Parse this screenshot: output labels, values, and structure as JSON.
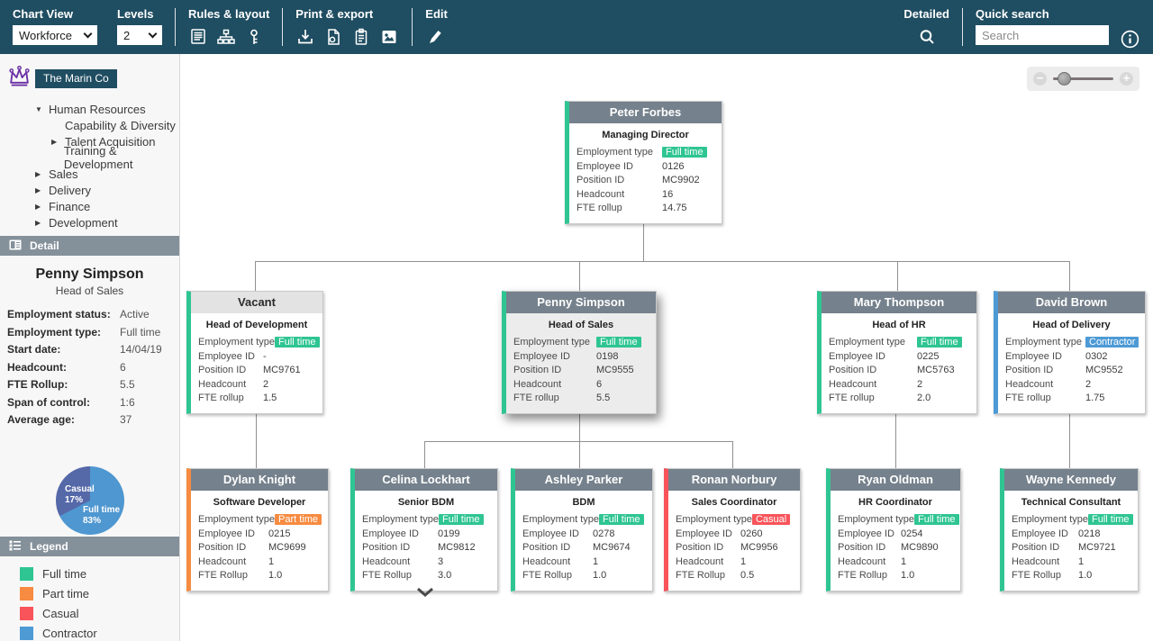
{
  "colors": {
    "toolbar_bg": "#1f4d61",
    "panel_header_bg": "#84909a",
    "company_bg": "#1f4d61",
    "header_gray": "#75818c",
    "vacant_header": "#e3e3e3",
    "fulltime": "#2fc592",
    "parttime": "#f78b41",
    "casual": "#f8545a",
    "contractor": "#4d9ad5",
    "pie_fulltime": "#4f97d0",
    "pie_casual": "#5568a8",
    "connector": "#909090",
    "crown": "#6b30a5"
  },
  "toolbar": {
    "chart_view_label": "Chart View",
    "chart_view_value": "Workforce",
    "levels_label": "Levels",
    "levels_value": "2",
    "rules_layout_label": "Rules & layout",
    "print_export_label": "Print & export",
    "edit_label": "Edit",
    "detailed_label": "Detailed",
    "quick_search_label": "Quick search",
    "search_placeholder": "Search"
  },
  "icons": {
    "toolbar": [
      "report-icon",
      "hierarchy-icon",
      "key-icon",
      "download-icon",
      "export-file-icon",
      "clipboard-icon",
      "image-icon",
      "pencil-icon",
      "magnifier-icon",
      "info-icon"
    ],
    "sidebar": [
      "crown-icon",
      "detail-panel-icon",
      "legend-icon"
    ],
    "zoom_bar": [
      "zoom-out-icon",
      "zoom-in-icon"
    ],
    "chart": [
      "expand-chevron-icon"
    ]
  },
  "sidebar": {
    "company": "The Marin Co",
    "tree": [
      {
        "label": "Human Resources",
        "arrow": "down",
        "level": 1
      },
      {
        "label": "Capability & Diversity",
        "arrow": "none",
        "level": 2
      },
      {
        "label": "Talent Acquisition",
        "arrow": "right",
        "level": 2
      },
      {
        "label": "Training & Development",
        "arrow": "none",
        "level": 2
      },
      {
        "label": "Sales",
        "arrow": "right",
        "level": 1
      },
      {
        "label": "Delivery",
        "arrow": "right",
        "level": 1
      },
      {
        "label": "Finance",
        "arrow": "right",
        "level": 1
      },
      {
        "label": "Development",
        "arrow": "right",
        "level": 1
      }
    ],
    "detail": {
      "header": "Detail",
      "name": "Penny Simpson",
      "title": "Head of Sales",
      "fields": [
        {
          "label": "Employment status:",
          "value": "Active"
        },
        {
          "label": "Employment type:",
          "value": "Full time"
        },
        {
          "label": "Start date:",
          "value": "14/04/19"
        },
        {
          "label": "Headcount:",
          "value": "6"
        },
        {
          "label": "FTE Rollup:",
          "value": "5.5"
        },
        {
          "label": "Span of control:",
          "value": "1:6"
        },
        {
          "label": "Average age:",
          "value": "37"
        }
      ]
    },
    "pie_labels": [
      {
        "name": "Casual",
        "pct": "17%"
      },
      {
        "name": "Full time",
        "pct": "83%"
      }
    ],
    "legend": {
      "header": "Legend",
      "items": [
        {
          "label": "Full time",
          "color": "#2fc592"
        },
        {
          "label": "Part time",
          "color": "#f78b41"
        },
        {
          "label": "Casual",
          "color": "#f8545a"
        },
        {
          "label": "Contractor",
          "color": "#4d9ad5"
        }
      ]
    }
  },
  "chart_data": {
    "type": "pie",
    "labels": [
      "Casual",
      "Full time"
    ],
    "values": [
      17,
      83
    ],
    "unit": "%",
    "colors": [
      "#5568a8",
      "#4f97d0"
    ],
    "title": "",
    "legend_position": "none"
  },
  "org": {
    "cards": [
      {
        "name": "Peter Forbes",
        "title": "Managing Director",
        "rows": [
          {
            "label": "Employment type",
            "value": "Full time",
            "badge": "fulltime"
          },
          {
            "label": "Employee ID",
            "value": "0126"
          },
          {
            "label": "Position ID",
            "value": "MC9902"
          },
          {
            "label": "Headcount",
            "value": "16"
          },
          {
            "label": "FTE rollup",
            "value": "14.75"
          }
        ]
      },
      {
        "name": "Vacant",
        "title": "Head of Development",
        "rows": [
          {
            "label": "Employment type",
            "value": "Full time",
            "badge": "fulltime"
          },
          {
            "label": "Employee ID",
            "value": "-"
          },
          {
            "label": "Position ID",
            "value": "MC9761"
          },
          {
            "label": "Headcount",
            "value": "2"
          },
          {
            "label": "FTE rollup",
            "value": "1.5"
          }
        ]
      },
      {
        "name": "Penny Simpson",
        "title": "Head of Sales",
        "rows": [
          {
            "label": "Employment type",
            "value": "Full time",
            "badge": "fulltime"
          },
          {
            "label": "Employee ID",
            "value": "0198"
          },
          {
            "label": "Position ID",
            "value": "MC9555"
          },
          {
            "label": "Headcount",
            "value": "6"
          },
          {
            "label": "FTE rollup",
            "value": "5.5"
          }
        ]
      },
      {
        "name": "Mary Thompson",
        "title": "Head of HR",
        "rows": [
          {
            "label": "Employment type",
            "value": "Full time",
            "badge": "fulltime"
          },
          {
            "label": "Employee ID",
            "value": "0225"
          },
          {
            "label": "Position ID",
            "value": "MC5763"
          },
          {
            "label": "Headcount",
            "value": "2"
          },
          {
            "label": "FTE rollup",
            "value": "2.0"
          }
        ]
      },
      {
        "name": "David Brown",
        "title": "Head of Delivery",
        "rows": [
          {
            "label": "Employment type",
            "value": "Contractor",
            "badge": "contractor"
          },
          {
            "label": "Employee ID",
            "value": "0302"
          },
          {
            "label": "Position ID",
            "value": "MC9552"
          },
          {
            "label": "Headcount",
            "value": "2"
          },
          {
            "label": "FTE rollup",
            "value": "1.75"
          }
        ]
      },
      {
        "name": "Dylan Knight",
        "title": "Software Developer",
        "rows": [
          {
            "label": "Employment type",
            "value": "Part time",
            "badge": "parttime"
          },
          {
            "label": "Employee ID",
            "value": "0215"
          },
          {
            "label": "Position ID",
            "value": "MC9699"
          },
          {
            "label": "Headcount",
            "value": "1"
          },
          {
            "label": "FTE Rollup",
            "value": "1.0"
          }
        ]
      },
      {
        "name": "Celina Lockhart",
        "title": "Senior BDM",
        "rows": [
          {
            "label": "Employment type",
            "value": "Full time",
            "badge": "fulltime"
          },
          {
            "label": "Employee ID",
            "value": "0199"
          },
          {
            "label": "Position ID",
            "value": "MC9812"
          },
          {
            "label": "Headcount",
            "value": "3"
          },
          {
            "label": "FTE Rollup",
            "value": "3.0"
          }
        ]
      },
      {
        "name": "Ashley Parker",
        "title": "BDM",
        "rows": [
          {
            "label": "Employment type",
            "value": "Full time",
            "badge": "fulltime"
          },
          {
            "label": "Employee ID",
            "value": "0278"
          },
          {
            "label": "Position ID",
            "value": "MC9674"
          },
          {
            "label": "Headcount",
            "value": "1"
          },
          {
            "label": "FTE Rollup",
            "value": "1.0"
          }
        ]
      },
      {
        "name": "Ronan Norbury",
        "title": "Sales Coordinator",
        "rows": [
          {
            "label": "Employment type",
            "value": "Casual",
            "badge": "casual"
          },
          {
            "label": "Employee ID",
            "value": "0260"
          },
          {
            "label": "Position ID",
            "value": "MC9956"
          },
          {
            "label": "Headcount",
            "value": "1"
          },
          {
            "label": "FTE Rollup",
            "value": "0.5"
          }
        ]
      },
      {
        "name": "Ryan Oldman",
        "title": "HR Coordinator",
        "rows": [
          {
            "label": "Employment type",
            "value": "Full time",
            "badge": "fulltime"
          },
          {
            "label": "Employee ID",
            "value": "0254"
          },
          {
            "label": "Position ID",
            "value": "MC9890"
          },
          {
            "label": "Headcount",
            "value": "1"
          },
          {
            "label": "FTE Rollup",
            "value": "1.0"
          }
        ]
      },
      {
        "name": "Wayne Kennedy",
        "title": "Technical Consultant",
        "rows": [
          {
            "label": "Employment type",
            "value": "Full time",
            "badge": "fulltime"
          },
          {
            "label": "Employee ID",
            "value": "0218"
          },
          {
            "label": "Position ID",
            "value": "MC9721"
          },
          {
            "label": "Headcount",
            "value": "1"
          },
          {
            "label": "FTE Rollup",
            "value": "1.0"
          }
        ]
      }
    ]
  },
  "zoom_bar": {
    "minus": "−",
    "plus": "+"
  }
}
